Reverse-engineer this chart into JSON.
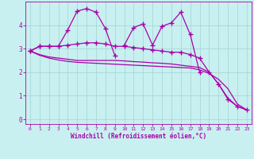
{
  "xlabel": "Windchill (Refroidissement éolien,°C)",
  "bg_color": "#c8f0f0",
  "grid_color": "#a8d8d8",
  "line_color": "#aa00aa",
  "x_values": [
    0,
    1,
    2,
    3,
    4,
    5,
    6,
    7,
    8,
    9,
    10,
    11,
    12,
    13,
    14,
    15,
    16,
    17,
    18,
    19,
    20,
    21,
    22,
    23
  ],
  "series1": [
    2.9,
    3.1,
    3.1,
    3.1,
    3.8,
    4.6,
    4.7,
    4.55,
    3.85,
    2.7,
    null,
    null,
    null,
    null,
    null,
    null,
    null,
    null,
    null,
    null,
    null,
    null,
    null,
    null
  ],
  "series2": [
    null,
    null,
    null,
    null,
    null,
    null,
    null,
    null,
    null,
    null,
    3.15,
    3.9,
    4.05,
    3.15,
    3.95,
    4.1,
    4.55,
    3.6,
    2.0,
    null,
    null,
    null,
    null,
    null
  ],
  "series3": [
    2.9,
    3.1,
    3.1,
    3.1,
    3.15,
    3.2,
    3.25,
    3.25,
    3.2,
    3.1,
    3.1,
    3.05,
    3.0,
    2.95,
    2.9,
    2.85,
    2.85,
    2.75,
    2.6,
    2.0,
    1.5,
    0.85,
    0.55,
    0.4
  ],
  "series4": [
    2.9,
    2.75,
    2.65,
    2.6,
    2.55,
    2.5,
    2.5,
    2.5,
    2.5,
    2.5,
    2.48,
    2.45,
    2.43,
    2.4,
    2.38,
    2.35,
    2.3,
    2.25,
    2.2,
    2.0,
    1.5,
    0.9,
    0.55,
    0.4
  ],
  "series5": [
    2.9,
    2.72,
    2.6,
    2.52,
    2.46,
    2.42,
    2.4,
    2.38,
    2.36,
    2.34,
    2.32,
    2.3,
    2.28,
    2.26,
    2.24,
    2.22,
    2.2,
    2.18,
    2.1,
    1.95,
    1.7,
    1.3,
    0.65,
    0.4
  ],
  "ylim": [
    -0.2,
    5.0
  ],
  "yticks": [
    0,
    1,
    2,
    3,
    4
  ],
  "xlim": [
    -0.5,
    23.5
  ],
  "xticks": [
    0,
    1,
    2,
    3,
    4,
    5,
    6,
    7,
    8,
    9,
    10,
    11,
    12,
    13,
    14,
    15,
    16,
    17,
    18,
    19,
    20,
    21,
    22,
    23
  ]
}
